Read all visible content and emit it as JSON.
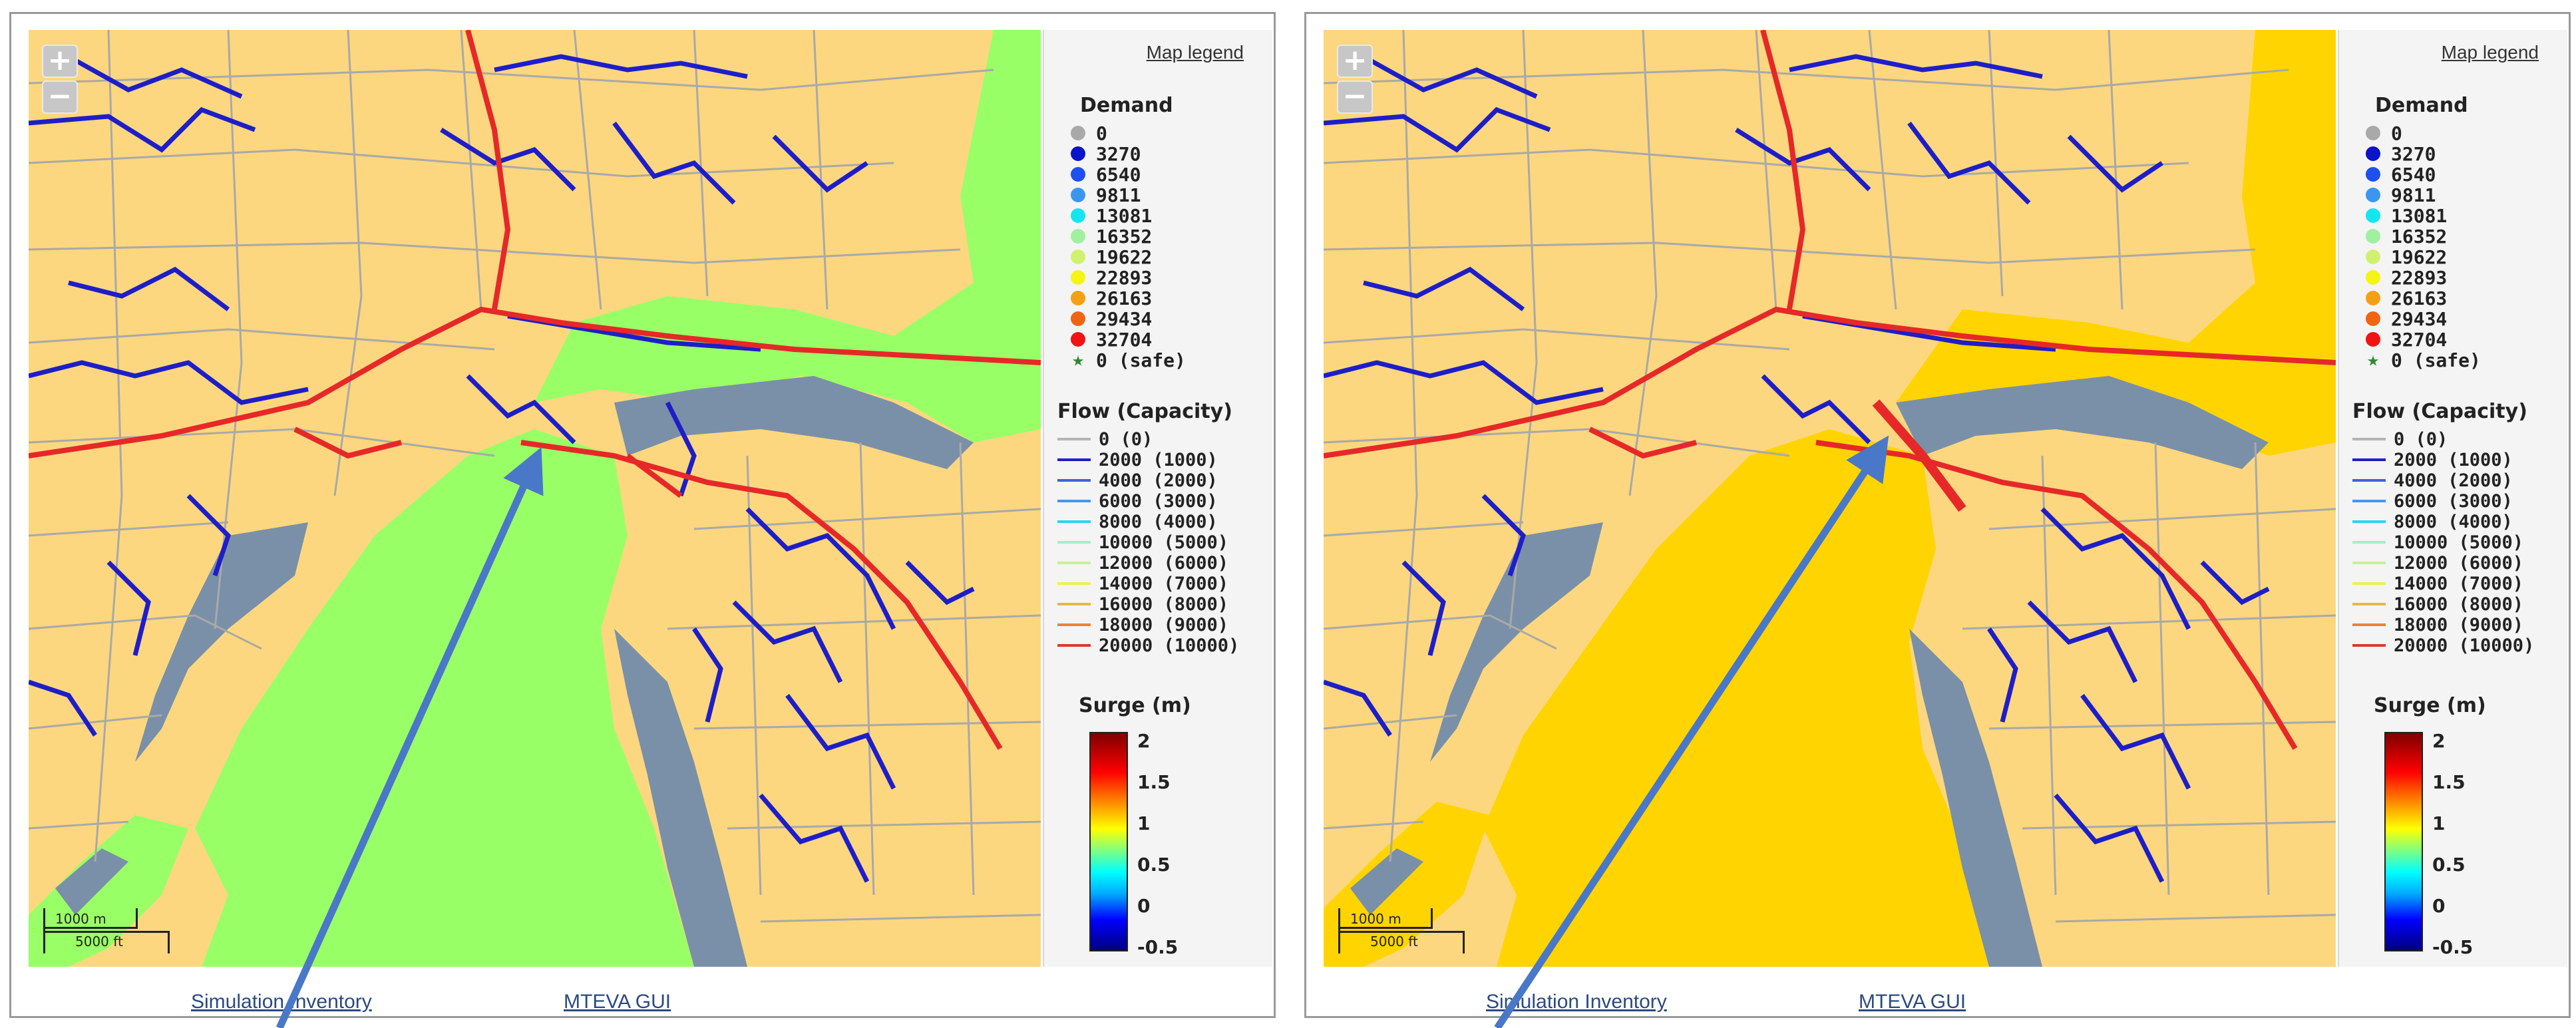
{
  "panels": [
    {
      "zoom_in": "+",
      "zoom_out": "−",
      "scale": {
        "meters": "1000 m",
        "feet": "5000 ft"
      },
      "flood_color": "#99ff66",
      "legend": {
        "title": "Map legend",
        "demand_title": "Demand",
        "demand": [
          {
            "label": "0",
            "color": "#a9a9a9"
          },
          {
            "label": "3270",
            "color": "#0a14c8"
          },
          {
            "label": "6540",
            "color": "#1e50f0"
          },
          {
            "label": "9811",
            "color": "#3c96f0"
          },
          {
            "label": "13081",
            "color": "#14e6f0"
          },
          {
            "label": "16352",
            "color": "#a0f0a0"
          },
          {
            "label": "19622",
            "color": "#d2f070"
          },
          {
            "label": "22893",
            "color": "#f5f514"
          },
          {
            "label": "26163",
            "color": "#f5a014"
          },
          {
            "label": "29434",
            "color": "#f06414"
          },
          {
            "label": "32704",
            "color": "#f01414"
          }
        ],
        "safe_label": "0 (safe)",
        "flow_title": "Flow (Capacity)",
        "flow": [
          {
            "label": "0 (0)",
            "color": "#b4b4b4"
          },
          {
            "label": "2000 (1000)",
            "color": "#1e1ec8"
          },
          {
            "label": "4000 (2000)",
            "color": "#3c64e6"
          },
          {
            "label": "6000 (3000)",
            "color": "#4696f0"
          },
          {
            "label": "8000 (4000)",
            "color": "#32d2f0"
          },
          {
            "label": "10000 (5000)",
            "color": "#a0f0c8"
          },
          {
            "label": "12000 (6000)",
            "color": "#c8f096"
          },
          {
            "label": "14000 (7000)",
            "color": "#f0f050"
          },
          {
            "label": "16000 (8000)",
            "color": "#f0b43c"
          },
          {
            "label": "18000 (9000)",
            "color": "#f08232"
          },
          {
            "label": "20000 (10000)",
            "color": "#e63232"
          }
        ],
        "surge_title": "Surge (m)",
        "surge_ticks": [
          "2",
          "1.5",
          "1",
          "0.5",
          "0",
          "-0.5"
        ]
      },
      "footer": {
        "simulation": "Simulation Inventory",
        "gui": "MTEVA GUI"
      }
    },
    {
      "zoom_in": "+",
      "zoom_out": "−",
      "scale": {
        "meters": "1000 m",
        "feet": "5000 ft"
      },
      "flood_color": "#ffd400",
      "legend": {
        "title": "Map legend",
        "demand_title": "Demand",
        "demand": [
          {
            "label": "0",
            "color": "#a9a9a9"
          },
          {
            "label": "3270",
            "color": "#0a14c8"
          },
          {
            "label": "6540",
            "color": "#1e50f0"
          },
          {
            "label": "9811",
            "color": "#3c96f0"
          },
          {
            "label": "13081",
            "color": "#14e6f0"
          },
          {
            "label": "16352",
            "color": "#a0f0a0"
          },
          {
            "label": "19622",
            "color": "#d2f070"
          },
          {
            "label": "22893",
            "color": "#f5f514"
          },
          {
            "label": "26163",
            "color": "#f5a014"
          },
          {
            "label": "29434",
            "color": "#f06414"
          },
          {
            "label": "32704",
            "color": "#f01414"
          }
        ],
        "safe_label": "0 (safe)",
        "flow_title": "Flow (Capacity)",
        "flow": [
          {
            "label": "0 (0)",
            "color": "#b4b4b4"
          },
          {
            "label": "2000 (1000)",
            "color": "#1e1ec8"
          },
          {
            "label": "4000 (2000)",
            "color": "#3c64e6"
          },
          {
            "label": "6000 (3000)",
            "color": "#4696f0"
          },
          {
            "label": "8000 (4000)",
            "color": "#32d2f0"
          },
          {
            "label": "10000 (5000)",
            "color": "#a0f0c8"
          },
          {
            "label": "12000 (6000)",
            "color": "#c8f096"
          },
          {
            "label": "14000 (7000)",
            "color": "#f0f050"
          },
          {
            "label": "16000 (8000)",
            "color": "#f0b43c"
          },
          {
            "label": "18000 (9000)",
            "color": "#f08232"
          },
          {
            "label": "20000 (10000)",
            "color": "#e63232"
          }
        ],
        "surge_title": "Surge (m)",
        "surge_ticks": [
          "2",
          "1.5",
          "1",
          "0.5",
          "0",
          "-0.5"
        ]
      },
      "footer": {
        "simulation": "Simulation Inventory",
        "gui": "MTEVA GUI"
      }
    }
  ],
  "colors": {
    "land": "#fcd77f",
    "river": "#7a90a8",
    "minor_road": "#a9a9a9",
    "major_road_blue": "#1e1ec8",
    "major_road_red": "#e62828",
    "arrow": "#4a78c8"
  }
}
